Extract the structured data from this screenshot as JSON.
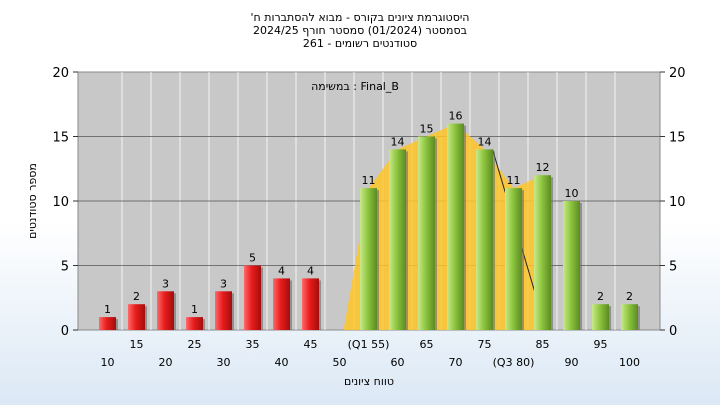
{
  "chart_data": {
    "type": "bar",
    "title": "'היסטוגרמת ציונים בקורס - מבוא להסתברות ח",
    "subtitle": "בסמסטר  (01/2024)  סמסטר חורף  2024/25",
    "subtitle2": "סטודנטים רשומים - 261",
    "xlabel": "טווח ציונים",
    "ylabel": "מספר סטודנטים",
    "ylim": [
      0,
      20
    ],
    "yticks": [
      "0",
      "5",
      "10",
      "15",
      "20"
    ],
    "grid": true,
    "task_label": "במשימה : Final_B",
    "categories": [
      "10",
      "15",
      "20",
      "25",
      "30",
      "35",
      "40",
      "45",
      "50",
      "55",
      "60",
      "65",
      "70",
      "75",
      "80",
      "85",
      "90",
      "95",
      "100"
    ],
    "tick_labels": [
      "10",
      "15",
      "20",
      "25",
      "30",
      "35",
      "40",
      "45",
      "50",
      "(Q1 55)",
      "60",
      "65",
      "70",
      "75",
      "(Q3 80)",
      "85",
      "90",
      "95",
      "100"
    ],
    "values": [
      1,
      2,
      3,
      1,
      3,
      5,
      4,
      4,
      0,
      11,
      14,
      15,
      16,
      14,
      11,
      12,
      10,
      2,
      2
    ],
    "value_labels": [
      "1",
      "2",
      "3",
      "1",
      "3",
      "5",
      "4",
      "4",
      "",
      "11",
      "14",
      "15",
      "16",
      "14",
      "11",
      "12",
      "10",
      "2",
      "2"
    ],
    "colors": {
      "fail": "#e21a1a",
      "pass": "#8ec63f",
      "background": "#c8c8c8",
      "distribution": "#ffc629"
    },
    "pass_from_index": 9
  }
}
